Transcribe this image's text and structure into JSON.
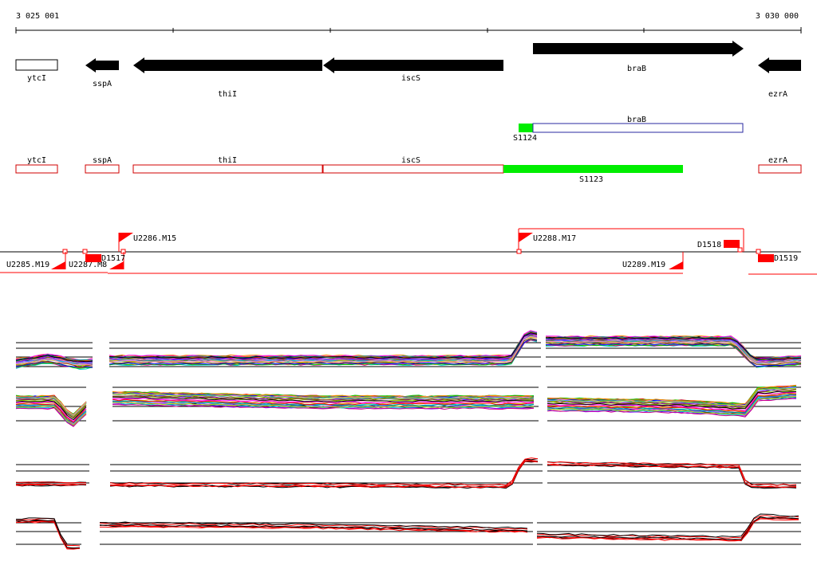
{
  "ruler": {
    "start_label": "3 025 001",
    "end_label": "3 030 000"
  },
  "colors": {
    "gene_fill": "#000000",
    "annotation_outline": "#d00000",
    "highlight": "#00ee00",
    "segment_outline": "#2a2aa0",
    "marker": "#ff0000",
    "condition_a": "#000000",
    "condition_b": "#ff0000",
    "trace_palette": [
      "#ff0000",
      "#00cc00",
      "#0000ff",
      "#ff00ff",
      "#00cccc",
      "#cccc00",
      "#ff8800",
      "#8800ff",
      "#008888",
      "#884400",
      "#000000",
      "#ff88cc",
      "#4488ff",
      "#88cc00",
      "#cc0088",
      "#666666"
    ]
  },
  "genes": [
    {
      "name": "ytcI",
      "direction": "none"
    },
    {
      "name": "sspA",
      "direction": "left"
    },
    {
      "name": "thiI",
      "direction": "left"
    },
    {
      "name": "iscS",
      "direction": "left"
    },
    {
      "name": "braB",
      "direction": "right"
    },
    {
      "name": "ezrA",
      "direction": "left"
    }
  ],
  "segments": [
    {
      "name": "braB",
      "extra_label": "S1124"
    }
  ],
  "annotations": [
    {
      "name": "ytcI"
    },
    {
      "name": "sspA"
    },
    {
      "name": "thiI"
    },
    {
      "name": "iscS"
    },
    {
      "name": "S1123"
    },
    {
      "name": "ezrA"
    }
  ],
  "features": [
    {
      "name": "U2286.M15",
      "kind": "upshift"
    },
    {
      "name": "U2288.M17",
      "kind": "upshift"
    },
    {
      "name": "D1518",
      "kind": "downshift"
    },
    {
      "name": "U2285.M19",
      "kind": "upshift"
    },
    {
      "name": "U2287.M8",
      "kind": "upshift"
    },
    {
      "name": "D1517",
      "kind": "downshift"
    },
    {
      "name": "U2289.M19",
      "kind": "upshift"
    },
    {
      "name": "D1519",
      "kind": "downshift"
    }
  ],
  "expression_panels": [
    {
      "name": "tiling-panel-top",
      "mode": "multicolor"
    },
    {
      "name": "tiling-panel-bottom",
      "mode": "multicolor"
    },
    {
      "name": "condition-panel-top",
      "mode": "pair"
    },
    {
      "name": "condition-panel-bottom",
      "mode": "pair"
    }
  ]
}
